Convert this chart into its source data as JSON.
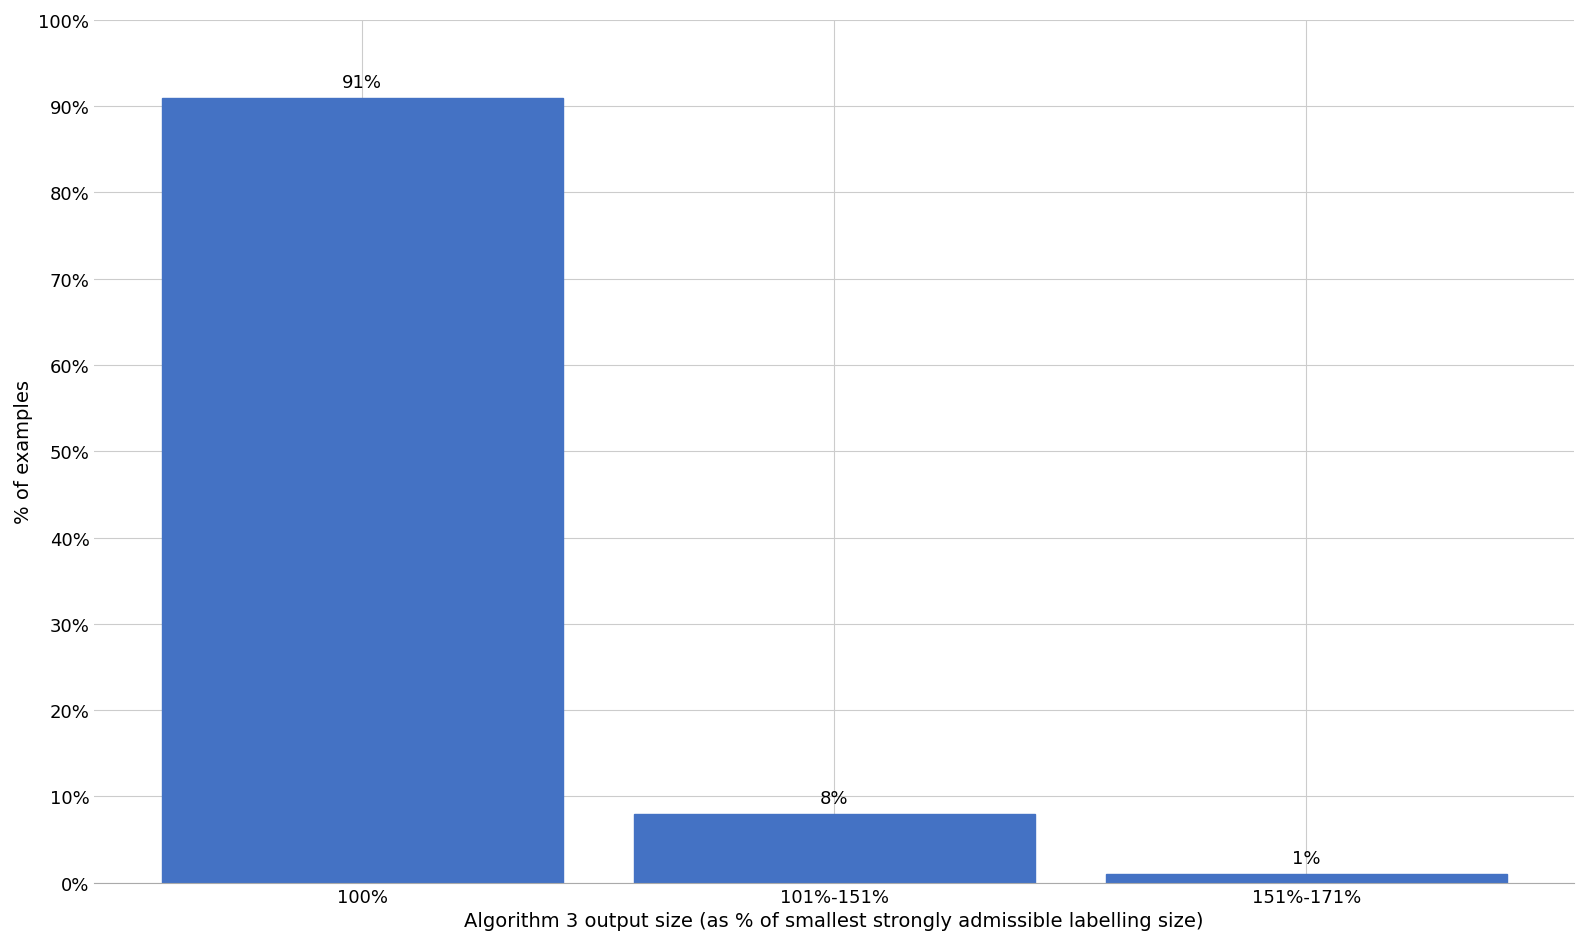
{
  "categories": [
    "100%",
    "101%-151%",
    "151%-171%"
  ],
  "values": [
    91,
    8,
    1
  ],
  "bar_color": "#4472C4",
  "bar_labels": [
    "91%",
    "8%",
    "1%"
  ],
  "ylabel": "% of examples",
  "xlabel": "Algorithm 3 output size (as % of smallest strongly admissible labelling size)",
  "yticks": [
    0,
    10,
    20,
    30,
    40,
    50,
    60,
    70,
    80,
    90,
    100
  ],
  "ytick_labels": [
    "0%",
    "10%",
    "20%",
    "30%",
    "40%",
    "50%",
    "60%",
    "70%",
    "80%",
    "90%",
    "100%"
  ],
  "ylim": [
    0,
    100
  ],
  "background_color": "#ffffff",
  "grid_color": "#cccccc",
  "bar_width": 0.85,
  "label_fontsize": 14,
  "tick_fontsize": 13,
  "annotation_fontsize": 13
}
